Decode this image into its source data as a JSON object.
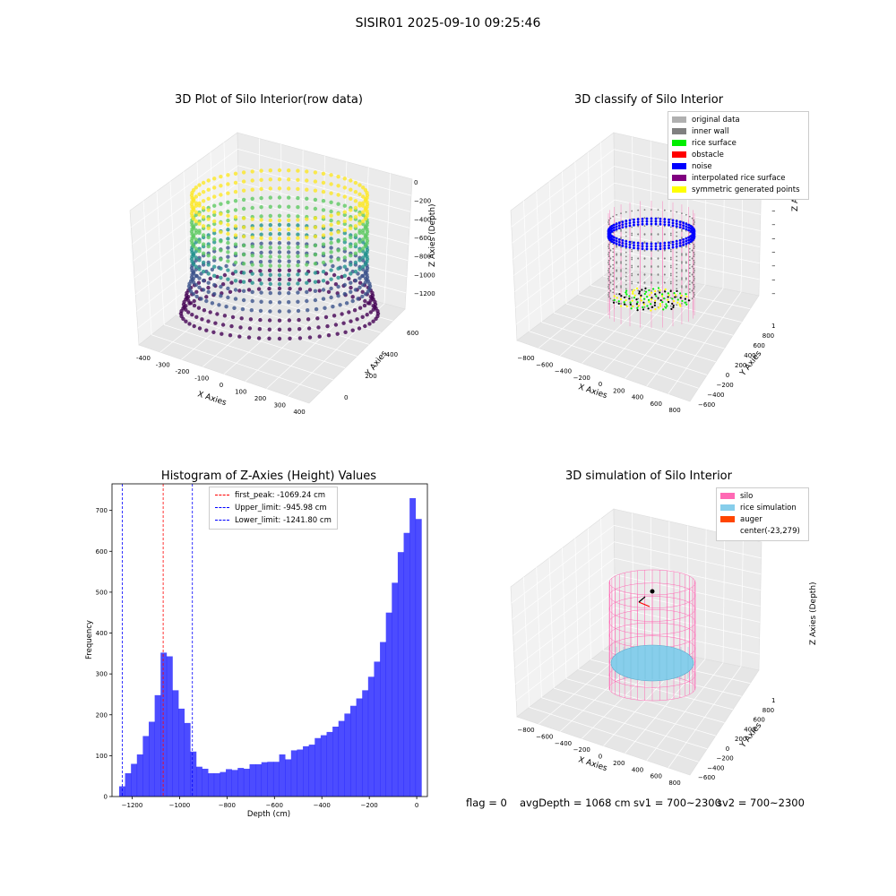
{
  "suptitle": "SISIR01 2025-09-10 09:25:46",
  "panels": {
    "raw": {
      "title": "3D Plot of Silo Interior(row data)",
      "xlabel": "X Axies",
      "ylabel": "Y Axies",
      "zlabel": "Z Axies (Depth)",
      "xticks": [
        "-400",
        "-300",
        "-200",
        "-100",
        "0",
        "100",
        "200",
        "300",
        "400"
      ],
      "yticks": [
        "0",
        "200",
        "400",
        "600"
      ],
      "zticks": [
        "0",
        "−200",
        "−400",
        "−600",
        "−800",
        "−1000",
        "−1200"
      ],
      "colormap": "viridis"
    },
    "classify": {
      "title": "3D classify of Silo Interior",
      "xlabel": "X Axies",
      "ylabel": "Y Axies",
      "zlabel": "Z Axies (Depth)",
      "xticks": [
        "−800",
        "−600",
        "−400",
        "−200",
        "0",
        "200",
        "400",
        "600",
        "800"
      ],
      "yticks": [
        "−600",
        "−400",
        "−200",
        "0",
        "200",
        "400",
        "600",
        "800",
        "1000"
      ],
      "zticks": [
        "0",
        "−200",
        "−400",
        "−600",
        "−800",
        "−1000",
        "−1200",
        "−1400"
      ],
      "legend": [
        {
          "label": "original data",
          "color": "#b0b0b0"
        },
        {
          "label": "inner wall",
          "color": "#808080"
        },
        {
          "label": "rice surface",
          "color": "#00ee00"
        },
        {
          "label": "obstacle",
          "color": "#ff0000"
        },
        {
          "label": "noise",
          "color": "#0000ff"
        },
        {
          "label": "interpolated rice surface",
          "color": "#800080"
        },
        {
          "label": "symmetric generated points",
          "color": "#ffff00"
        }
      ]
    },
    "simulation": {
      "title": "3D simulation of Silo Interior",
      "xlabel": "X Axies",
      "ylabel": "Y Axies",
      "zlabel": "Z Axies (Depth)",
      "xticks": [
        "−800",
        "−600",
        "−400",
        "−200",
        "0",
        "200",
        "400",
        "600",
        "800"
      ],
      "yticks": [
        "−600",
        "−400",
        "−200",
        "0",
        "200",
        "400",
        "600",
        "800",
        "1000"
      ],
      "zticks": [
        "200",
        "0",
        "−200",
        "−400",
        "−600",
        "−800",
        "−1000",
        "−1200",
        "−1400"
      ],
      "legend": [
        {
          "label": "silo",
          "color": "#ff69b4"
        },
        {
          "label": "rice simulation",
          "color": "#87ceeb"
        },
        {
          "label": "auger",
          "color": "#ff4500"
        },
        {
          "label": "center(-23,279)",
          "color": ""
        }
      ]
    }
  },
  "chart_data": {
    "type": "bar",
    "title": "Histogram of Z-Axies (Height) Values",
    "xlabel": "Depth (cm)",
    "ylabel": "Frequency",
    "xlim": [
      -1285,
      45
    ],
    "ylim": [
      0,
      765
    ],
    "xticks": [
      -1200,
      -1000,
      -800,
      -600,
      -400,
      -200,
      0
    ],
    "xtick_labels": [
      "−1200",
      "−1000",
      "−800",
      "−600",
      "−400",
      "−200",
      "0"
    ],
    "yticks": [
      0,
      100,
      200,
      300,
      400,
      500,
      600,
      700
    ],
    "bin_start": -1255,
    "bin_width": 25,
    "values": [
      25,
      57,
      80,
      103,
      148,
      183,
      248,
      352,
      343,
      260,
      215,
      180,
      110,
      73,
      68,
      57,
      57,
      60,
      67,
      65,
      70,
      68,
      79,
      79,
      84,
      85,
      85,
      103,
      91,
      113,
      115,
      123,
      127,
      143,
      150,
      158,
      171,
      185,
      203,
      222,
      240,
      260,
      293,
      330,
      378,
      450,
      523,
      598,
      645,
      730,
      679
    ],
    "color": "#0000ff",
    "lines": [
      {
        "label": "first_peak: -1069.24 cm",
        "x": -1069.24,
        "color": "#ff0000"
      },
      {
        "label": "Upper_limit: -945.98 cm",
        "x": -945.98,
        "color": "#0000ff"
      },
      {
        "label": "Lower_limit: -1241.80 cm",
        "x": -1241.8,
        "color": "#0000ff"
      }
    ]
  },
  "status": {
    "flag": "flag = 0",
    "avg_depth": "avgDepth = 1068 cm",
    "sv1": "sv1 = 700~2300",
    "sv2": "sv2 = 700~2300"
  }
}
